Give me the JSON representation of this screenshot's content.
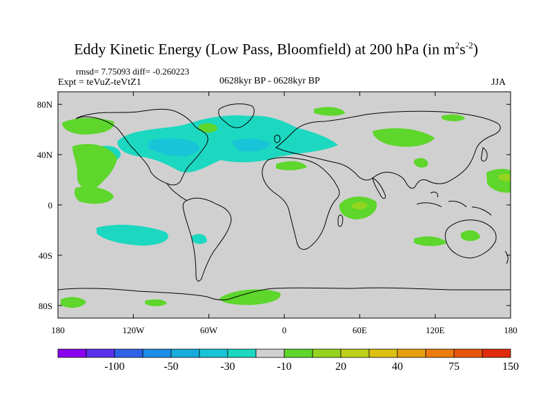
{
  "title": {
    "main": "Eddy Kinetic Energy (Low Pass, Bloomfield) at 200 hPa (in m",
    "sup1": "2",
    "mid": "s",
    "sup2": "-2",
    "end": ")"
  },
  "stats": "rmsd= 7.75093 diff= -0.260223",
  "expt": "Expt = teVuZ-teVtZ1",
  "period": "0628kyr BP - 0628kyr BP",
  "season": "JJA",
  "axes": {
    "lon_ticks": [
      "180",
      "120W",
      "60W",
      "0",
      "60E",
      "120E",
      "180"
    ],
    "lat_ticks": [
      "80N",
      "40N",
      "0",
      "40S",
      "80S"
    ]
  },
  "colorbar": {
    "colors": [
      "#8a00f0",
      "#5a30f0",
      "#2e62e8",
      "#1a8ee8",
      "#18acdc",
      "#18c4d8",
      "#1cd8c0",
      "#d0d0d0",
      "#5ed62c",
      "#94d41e",
      "#c0d01a",
      "#dcc012",
      "#e8a00e",
      "#ec7c0c",
      "#e8560c",
      "#e02c0c"
    ],
    "labels": [
      "-100",
      "-50",
      "-30",
      "-10",
      "20",
      "40",
      "75",
      "150"
    ]
  }
}
